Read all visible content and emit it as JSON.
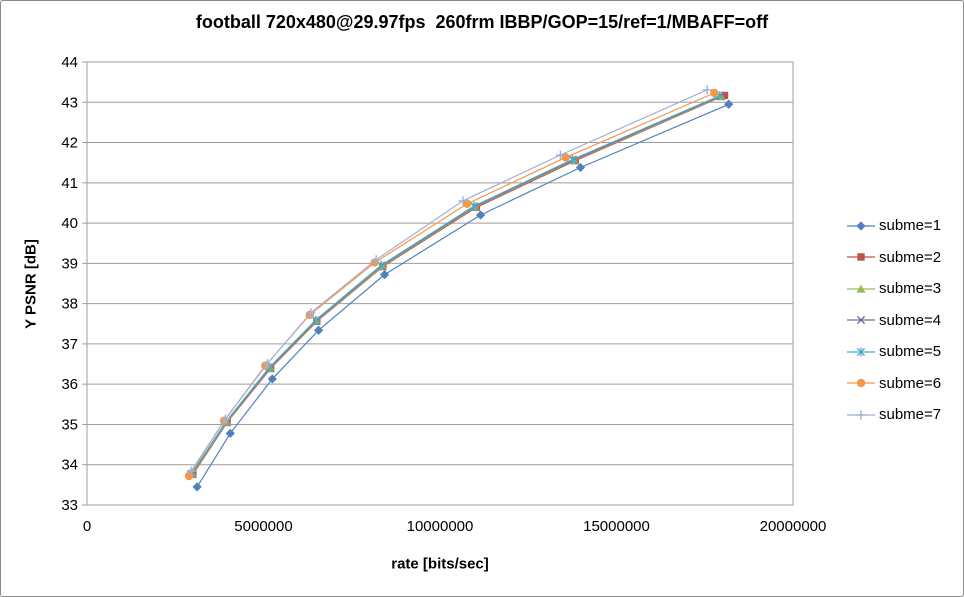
{
  "chart": {
    "window_kind": "excel-style line chart"
  },
  "chart_data": {
    "type": "line",
    "title": "football 720x480@29.97fps  260frm IBBP/GOP=15/ref=1/MBAFF=off",
    "xlabel": "rate [bits/sec]",
    "ylabel": "Y PSNR [dB]",
    "xlim": [
      0,
      20000000
    ],
    "ylim": [
      33,
      44
    ],
    "x_ticks": [
      0,
      5000000,
      10000000,
      15000000,
      20000000
    ],
    "y_ticks": [
      33,
      34,
      35,
      36,
      37,
      38,
      39,
      40,
      41,
      42,
      43,
      44
    ],
    "grid": "horizontal",
    "legend_position": "right",
    "grid_color": "#9d9d9d",
    "text_color": "#000000",
    "series": [
      {
        "name": "subme=1",
        "color": "#4F81BD",
        "marker": "diamond",
        "points": [
          [
            3120000,
            33.45
          ],
          [
            4060000,
            34.78
          ],
          [
            5250000,
            36.13
          ],
          [
            6560000,
            37.34
          ],
          [
            8430000,
            38.72
          ],
          [
            11150000,
            40.2
          ],
          [
            13980000,
            41.38
          ],
          [
            18180000,
            42.95
          ]
        ]
      },
      {
        "name": "subme=2",
        "color": "#C0504D",
        "marker": "square",
        "points": [
          [
            3000000,
            33.76
          ],
          [
            3970000,
            35.05
          ],
          [
            5200000,
            36.39
          ],
          [
            6510000,
            37.56
          ],
          [
            8380000,
            38.92
          ],
          [
            11030000,
            40.39
          ],
          [
            13830000,
            41.55
          ],
          [
            18060000,
            43.17
          ]
        ]
      },
      {
        "name": "subme=3",
        "color": "#9BBB59",
        "marker": "triangle",
        "points": [
          [
            2990000,
            33.77
          ],
          [
            3960000,
            35.06
          ],
          [
            5190000,
            36.4
          ],
          [
            6500000,
            37.57
          ],
          [
            8360000,
            38.93
          ],
          [
            11000000,
            40.4
          ],
          [
            13790000,
            41.56
          ],
          [
            17960000,
            43.14
          ]
        ]
      },
      {
        "name": "subme=4",
        "color": "#8064A2",
        "marker": "x",
        "points": [
          [
            2980000,
            33.78
          ],
          [
            3950000,
            35.07
          ],
          [
            5180000,
            36.41
          ],
          [
            6490000,
            37.58
          ],
          [
            8340000,
            38.94
          ],
          [
            10980000,
            40.41
          ],
          [
            13770000,
            41.57
          ],
          [
            17940000,
            43.15
          ]
        ]
      },
      {
        "name": "subme=5",
        "color": "#4BACC6",
        "marker": "asterisk",
        "points": [
          [
            2975000,
            33.79
          ],
          [
            3945000,
            35.08
          ],
          [
            5170000,
            36.42
          ],
          [
            6480000,
            37.59
          ],
          [
            8330000,
            38.95
          ],
          [
            10960000,
            40.42
          ],
          [
            13750000,
            41.58
          ],
          [
            17920000,
            43.16
          ]
        ]
      },
      {
        "name": "subme=6",
        "color": "#F79646",
        "marker": "circle",
        "points": [
          [
            2890000,
            33.72
          ],
          [
            3880000,
            35.09
          ],
          [
            5050000,
            36.46
          ],
          [
            6310000,
            37.72
          ],
          [
            8150000,
            39.02
          ],
          [
            10770000,
            40.48
          ],
          [
            13560000,
            41.63
          ],
          [
            17770000,
            43.23
          ]
        ]
      },
      {
        "name": "subme=7",
        "color": "#9FB1D6",
        "marker": "plus",
        "points": [
          [
            2950000,
            33.84
          ],
          [
            3920000,
            35.13
          ],
          [
            5110000,
            36.51
          ],
          [
            6340000,
            37.77
          ],
          [
            8190000,
            39.09
          ],
          [
            10650000,
            40.55
          ],
          [
            13410000,
            41.69
          ],
          [
            17570000,
            43.31
          ]
        ]
      }
    ]
  }
}
